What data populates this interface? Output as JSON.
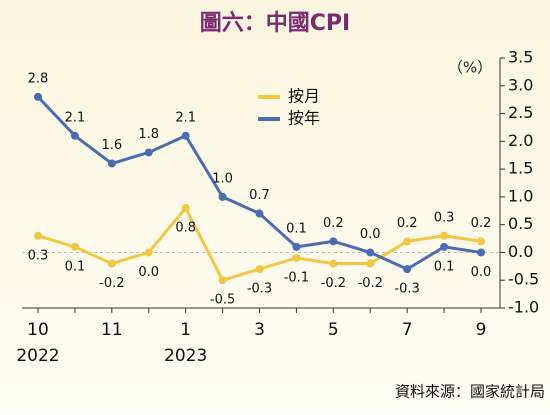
{
  "chart_data": {
    "type": "line",
    "title": "圖六：中國CPI",
    "unit": "（%）",
    "source": "資料來源：國家統計局",
    "categories": [
      "10",
      null,
      "11",
      null,
      "1",
      null,
      "3",
      null,
      "5",
      null,
      "7",
      null,
      "9"
    ],
    "years": [
      "2022",
      null,
      null,
      null,
      "2023",
      null,
      null,
      null,
      null,
      null,
      null,
      null,
      null
    ],
    "series": [
      {
        "name": "按月",
        "color": "#f2c744",
        "values": [
          0.3,
          0.1,
          -0.2,
          0.0,
          0.8,
          -0.5,
          -0.3,
          -0.1,
          -0.2,
          -0.2,
          0.2,
          0.3,
          0.2
        ],
        "value_labels": [
          "0.3",
          "0.1",
          "-0.2",
          "0.0",
          "0.8",
          "-0.5",
          "-0.3",
          "-0.1",
          "-0.2",
          "-0.2",
          "0.2",
          "0.3",
          "0.2"
        ]
      },
      {
        "name": "按年",
        "color": "#4a6cb3",
        "values": [
          2.8,
          2.1,
          1.6,
          1.8,
          2.1,
          1.0,
          0.7,
          0.1,
          0.2,
          0.0,
          -0.3,
          0.1,
          0.0
        ],
        "value_labels": [
          "2.8",
          "2.1",
          "1.6",
          "1.8",
          "2.1",
          "1.0",
          "0.7",
          "0.1",
          "0.2",
          "0.0",
          "-0.3",
          "0.1",
          "0.0"
        ]
      }
    ],
    "ylim": [
      -1.0,
      3.5
    ],
    "yticks": [
      3.5,
      {
        "value": 3.0,
        "label": "3.0"
      },
      2.5,
      {
        "value": 2.0,
        "label": "2.0"
      },
      1.5,
      {
        "value": 1.0,
        "label": "1.0"
      },
      0.5,
      {
        "value": 0.0,
        "label": "0.0"
      },
      -0.5,
      {
        "value": -1.0,
        "label": "-1.0"
      }
    ],
    "legend": "top"
  }
}
